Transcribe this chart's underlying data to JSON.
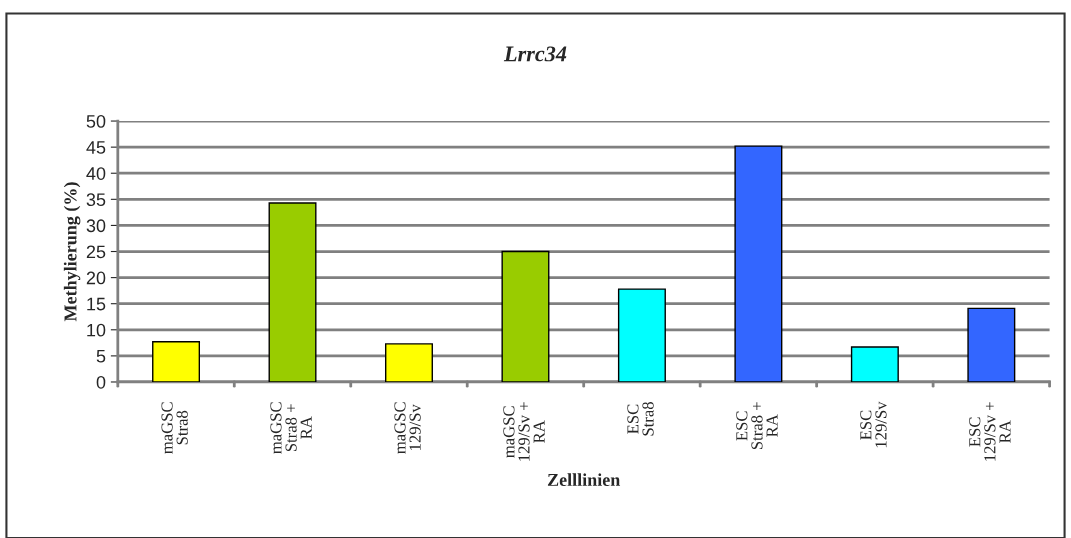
{
  "chart_data": {
    "type": "bar",
    "title": "Lrrc34",
    "xlabel": "Zelllinien",
    "ylabel": "Methylierung (%)",
    "categories": [
      "maGSC\nStra8",
      "maGSC\nStra8 +\nRA",
      "maGSC\n129/Sv",
      "maGSC\n129/Sv +\nRA",
      "ESC\nStra8",
      "ESC\nStra8 +\nRA",
      "ESC\n129/Sv",
      "ESC\n129/Sv +\nRA"
    ],
    "values": [
      7.7,
      34.3,
      7.3,
      25.0,
      17.8,
      45.2,
      6.7,
      14.1
    ],
    "colors": [
      "#ffff00",
      "#99cc00",
      "#ffff00",
      "#99cc00",
      "#00ffff",
      "#3366ff",
      "#00ffff",
      "#3366ff"
    ],
    "ylim": [
      0,
      50
    ],
    "yticks": [
      0,
      5,
      10,
      15,
      20,
      25,
      30,
      35,
      40,
      45,
      50
    ],
    "grid": "y",
    "legend": false
  }
}
